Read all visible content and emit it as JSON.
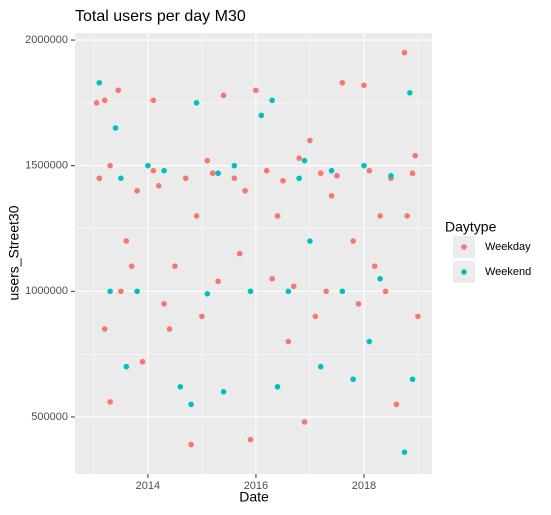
{
  "chart_data": {
    "type": "scatter",
    "title": "Total users per day M30",
    "x_label": "Date",
    "y_label": "users_Street30",
    "legend_title": "Daytype",
    "legend_position": "right",
    "xlim": [
      2012.65,
      2019.26
    ],
    "xticks": [
      2014,
      2016,
      2018
    ],
    "x_minor_ticks": [
      2013,
      2015,
      2017,
      2019
    ],
    "ylim": [
      273000,
      2028000
    ],
    "yticks": [
      500000,
      1000000,
      1500000,
      2000000
    ],
    "y_minor_ticks": [
      750000,
      1250000,
      1750000
    ],
    "grid": true,
    "series": [
      {
        "name": "Weekday",
        "color": "#F8766D",
        "x": [
          2013.05,
          2013.2,
          2013.3,
          2013.45,
          2013.1,
          2013.3,
          2013.5,
          2013.6,
          2013.8,
          2013.9,
          2014.1,
          2014.1,
          2014.3,
          2014.5,
          2014.7,
          2014.8,
          2014.9,
          2015.1,
          2015.3,
          2015.4,
          2015.6,
          2015.8,
          2015.9,
          2016.0,
          2016.2,
          2016.3,
          2016.5,
          2016.6,
          2016.8,
          2016.9,
          2017.0,
          2017.2,
          2017.3,
          2017.5,
          2017.6,
          2017.8,
          2017.9,
          2018.0,
          2018.1,
          2018.3,
          2018.4,
          2018.5,
          2018.6,
          2018.75,
          2018.8,
          2018.9,
          2019.0,
          2013.7,
          2014.4,
          2015.0,
          2016.4,
          2017.1,
          2018.2,
          2013.2,
          2015.7,
          2016.7,
          2017.4,
          2018.95,
          2014.2,
          2015.2
        ],
        "values": [
          1750000,
          1760000,
          560000,
          1800000,
          1450000,
          1500000,
          1000000,
          1200000,
          1400000,
          720000,
          1480000,
          1760000,
          950000,
          1100000,
          1450000,
          390000,
          1300000,
          1520000,
          1040000,
          1780000,
          1450000,
          1400000,
          410000,
          1800000,
          1480000,
          1050000,
          1440000,
          800000,
          1530000,
          480000,
          1600000,
          1470000,
          1000000,
          1460000,
          1830000,
          1200000,
          950000,
          1820000,
          1480000,
          1300000,
          1000000,
          1450000,
          550000,
          1950000,
          1300000,
          1470000,
          900000,
          1100000,
          850000,
          900000,
          1300000,
          900000,
          1100000,
          850000,
          1150000,
          1020000,
          1380000,
          1540000,
          1420000,
          1470000
        ]
      },
      {
        "name": "Weekend",
        "color": "#00BFC4",
        "x": [
          2013.1,
          2013.4,
          2013.5,
          2013.6,
          2013.8,
          2014.0,
          2014.3,
          2014.6,
          2014.8,
          2014.9,
          2015.1,
          2015.4,
          2015.6,
          2015.9,
          2016.1,
          2016.3,
          2016.4,
          2016.6,
          2016.9,
          2017.2,
          2017.4,
          2017.6,
          2017.8,
          2018.0,
          2018.3,
          2018.5,
          2018.75,
          2018.85,
          2018.9,
          2013.3,
          2015.3,
          2017.0,
          2018.1,
          2016.8
        ],
        "values": [
          1830000,
          1650000,
          1450000,
          700000,
          1000000,
          1500000,
          1480000,
          620000,
          550000,
          1750000,
          990000,
          600000,
          1500000,
          1000000,
          1700000,
          1760000,
          620000,
          1000000,
          1520000,
          700000,
          1480000,
          1000000,
          650000,
          1500000,
          1050000,
          1460000,
          360000,
          1790000,
          650000,
          1000000,
          1470000,
          1200000,
          800000,
          1450000
        ]
      }
    ]
  }
}
